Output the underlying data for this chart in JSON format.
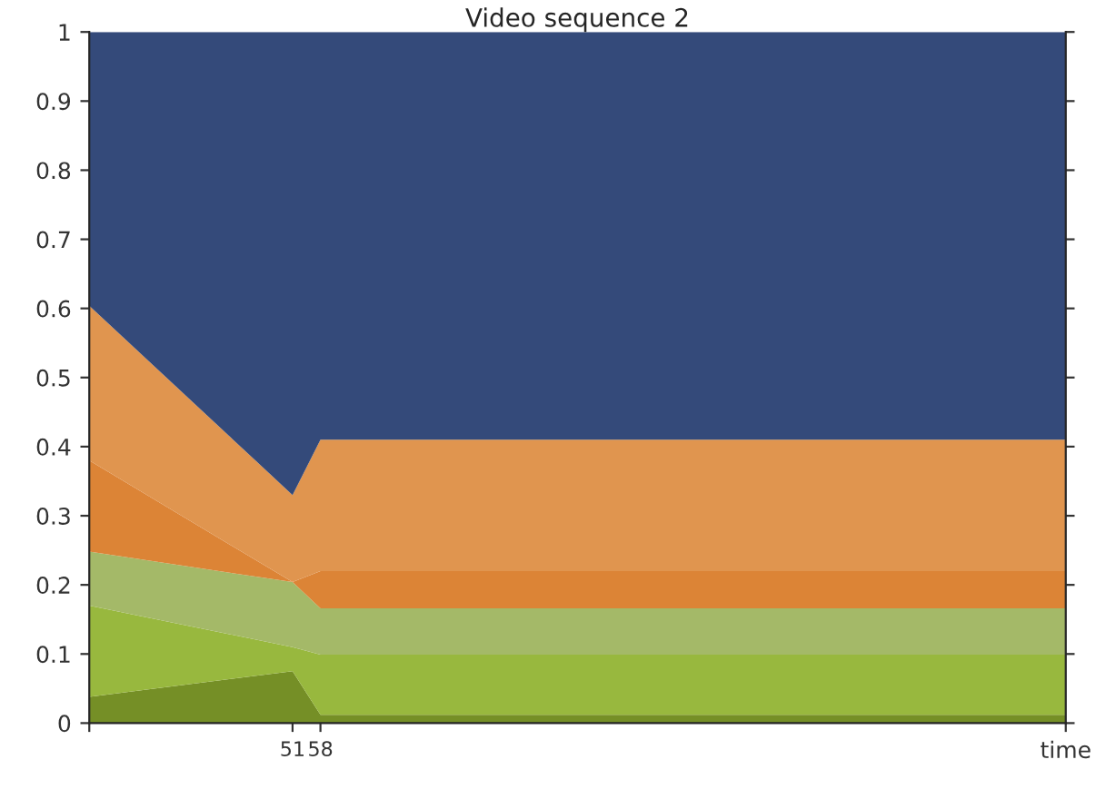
{
  "chart_data": {
    "type": "area",
    "stacked": true,
    "title": "Video sequence 2",
    "x": [
      0,
      51,
      58,
      245
    ],
    "series": [
      {
        "color": "#758f26",
        "values": [
          0.038,
          0.075,
          0.012,
          0.012
        ]
      },
      {
        "color": "#98b83e",
        "values": [
          0.132,
          0.035,
          0.087,
          0.087
        ]
      },
      {
        "color": "#a4b968",
        "values": [
          0.078,
          0.094,
          0.067,
          0.067
        ]
      },
      {
        "color": "#dc8436",
        "values": [
          0.132,
          0.0,
          0.054,
          0.054
        ]
      },
      {
        "color": "#e0954f",
        "values": [
          0.224,
          0.126,
          0.19,
          0.19
        ]
      },
      {
        "color": "#344a7a",
        "values": [
          0.396,
          0.67,
          0.59,
          0.59
        ]
      }
    ],
    "xlim": [
      0,
      245
    ],
    "xticks": [
      {
        "value": 0,
        "label": null
      },
      51,
      58,
      {
        "value": 245,
        "label": "time"
      }
    ],
    "ylim": [
      0,
      1
    ],
    "yticks": [
      0,
      0.1,
      0.2,
      0.3,
      0.4,
      0.5,
      0.6,
      0.7,
      0.8,
      0.9,
      1
    ],
    "grid": false,
    "legend": false
  }
}
